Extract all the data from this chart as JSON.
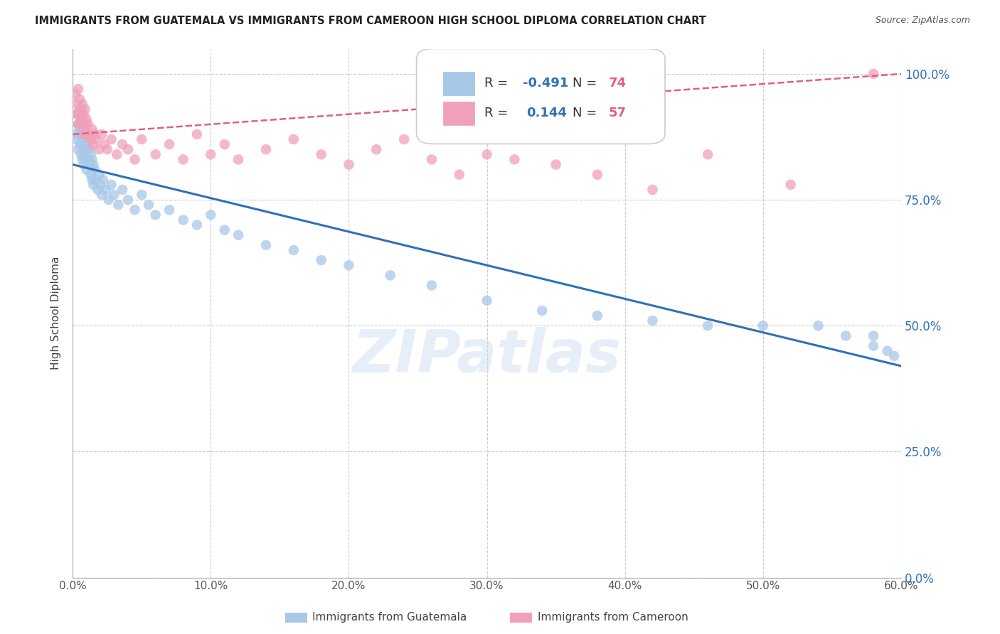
{
  "title": "IMMIGRANTS FROM GUATEMALA VS IMMIGRANTS FROM CAMEROON HIGH SCHOOL DIPLOMA CORRELATION CHART",
  "source": "Source: ZipAtlas.com",
  "xlabel_ticks": [
    "0.0%",
    "10.0%",
    "20.0%",
    "30.0%",
    "40.0%",
    "50.0%",
    "60.0%"
  ],
  "xlabel_vals": [
    0.0,
    0.1,
    0.2,
    0.3,
    0.4,
    0.5,
    0.6
  ],
  "ylabel_ticks": [
    "0.0%",
    "25.0%",
    "50.0%",
    "75.0%",
    "100.0%"
  ],
  "ylabel_vals": [
    0.0,
    0.25,
    0.5,
    0.75,
    1.0
  ],
  "xmin": 0.0,
  "xmax": 0.6,
  "ymin": 0.0,
  "ymax": 1.05,
  "ylabel": "High School Diploma",
  "r_blue": -0.491,
  "n_blue": 74,
  "r_pink": 0.144,
  "n_pink": 57,
  "blue_color": "#A8C8E8",
  "pink_color": "#F0A0B8",
  "blue_line_color": "#3070B8",
  "pink_line_color": "#E06080",
  "watermark": "ZIPatlas",
  "guatemala_x": [
    0.002,
    0.003,
    0.003,
    0.004,
    0.004,
    0.005,
    0.005,
    0.005,
    0.006,
    0.006,
    0.006,
    0.007,
    0.007,
    0.007,
    0.008,
    0.008,
    0.008,
    0.009,
    0.009,
    0.01,
    0.01,
    0.01,
    0.011,
    0.011,
    0.012,
    0.012,
    0.013,
    0.013,
    0.014,
    0.014,
    0.015,
    0.015,
    0.016,
    0.017,
    0.018,
    0.019,
    0.02,
    0.021,
    0.022,
    0.024,
    0.026,
    0.028,
    0.03,
    0.033,
    0.036,
    0.04,
    0.045,
    0.05,
    0.055,
    0.06,
    0.07,
    0.08,
    0.09,
    0.1,
    0.11,
    0.12,
    0.14,
    0.16,
    0.18,
    0.2,
    0.23,
    0.26,
    0.3,
    0.34,
    0.38,
    0.42,
    0.46,
    0.5,
    0.54,
    0.56,
    0.58,
    0.58,
    0.59,
    0.595
  ],
  "guatemala_y": [
    0.88,
    0.92,
    0.87,
    0.9,
    0.85,
    0.93,
    0.89,
    0.86,
    0.91,
    0.88,
    0.84,
    0.9,
    0.87,
    0.83,
    0.89,
    0.85,
    0.82,
    0.87,
    0.84,
    0.88,
    0.85,
    0.81,
    0.86,
    0.83,
    0.85,
    0.82,
    0.84,
    0.8,
    0.83,
    0.79,
    0.82,
    0.78,
    0.81,
    0.79,
    0.77,
    0.8,
    0.78,
    0.76,
    0.79,
    0.77,
    0.75,
    0.78,
    0.76,
    0.74,
    0.77,
    0.75,
    0.73,
    0.76,
    0.74,
    0.72,
    0.73,
    0.71,
    0.7,
    0.72,
    0.69,
    0.68,
    0.66,
    0.65,
    0.63,
    0.62,
    0.6,
    0.58,
    0.55,
    0.53,
    0.52,
    0.51,
    0.5,
    0.5,
    0.5,
    0.48,
    0.48,
    0.46,
    0.45,
    0.44
  ],
  "cameroon_x": [
    0.002,
    0.003,
    0.003,
    0.004,
    0.004,
    0.005,
    0.005,
    0.006,
    0.006,
    0.007,
    0.007,
    0.008,
    0.008,
    0.009,
    0.009,
    0.01,
    0.01,
    0.011,
    0.012,
    0.013,
    0.014,
    0.015,
    0.016,
    0.017,
    0.019,
    0.021,
    0.023,
    0.025,
    0.028,
    0.032,
    0.036,
    0.04,
    0.045,
    0.05,
    0.06,
    0.07,
    0.08,
    0.09,
    0.1,
    0.11,
    0.12,
    0.14,
    0.16,
    0.18,
    0.2,
    0.22,
    0.24,
    0.26,
    0.28,
    0.3,
    0.32,
    0.35,
    0.38,
    0.42,
    0.46,
    0.52,
    0.58
  ],
  "cameroon_y": [
    0.96,
    0.94,
    0.92,
    0.97,
    0.9,
    0.95,
    0.92,
    0.93,
    0.9,
    0.94,
    0.91,
    0.92,
    0.88,
    0.93,
    0.9,
    0.91,
    0.88,
    0.9,
    0.88,
    0.87,
    0.89,
    0.86,
    0.88,
    0.87,
    0.85,
    0.88,
    0.86,
    0.85,
    0.87,
    0.84,
    0.86,
    0.85,
    0.83,
    0.87,
    0.84,
    0.86,
    0.83,
    0.88,
    0.84,
    0.86,
    0.83,
    0.85,
    0.87,
    0.84,
    0.82,
    0.85,
    0.87,
    0.83,
    0.8,
    0.84,
    0.83,
    0.82,
    0.8,
    0.77,
    0.84,
    0.78,
    1.0
  ],
  "blue_line_x": [
    0.0,
    0.6
  ],
  "blue_line_y": [
    0.82,
    0.42
  ],
  "pink_line_x": [
    0.0,
    0.6
  ],
  "pink_line_y": [
    0.88,
    1.0
  ]
}
